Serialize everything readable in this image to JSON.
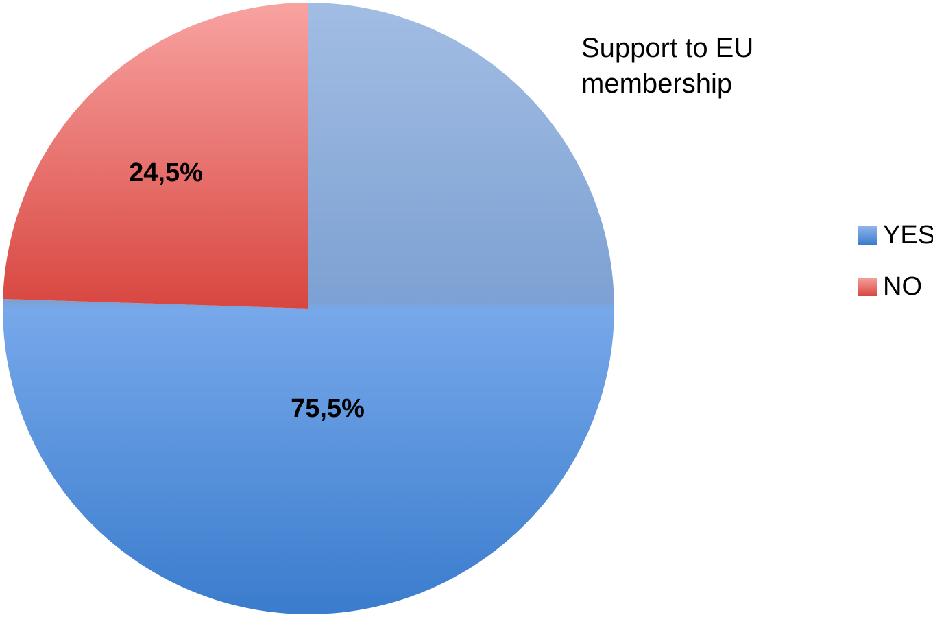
{
  "chart_data": {
    "type": "pie",
    "title": "Support to EU membership",
    "slices": [
      {
        "label": "YES",
        "value": 75.5,
        "display": "75,5%",
        "color": "#4a85d4"
      },
      {
        "label": "NO",
        "value": 24.5,
        "display": "24,5%",
        "color": "#e06662"
      }
    ],
    "legend_position": "right",
    "start_angle_deg": 0,
    "direction": "clockwise"
  }
}
